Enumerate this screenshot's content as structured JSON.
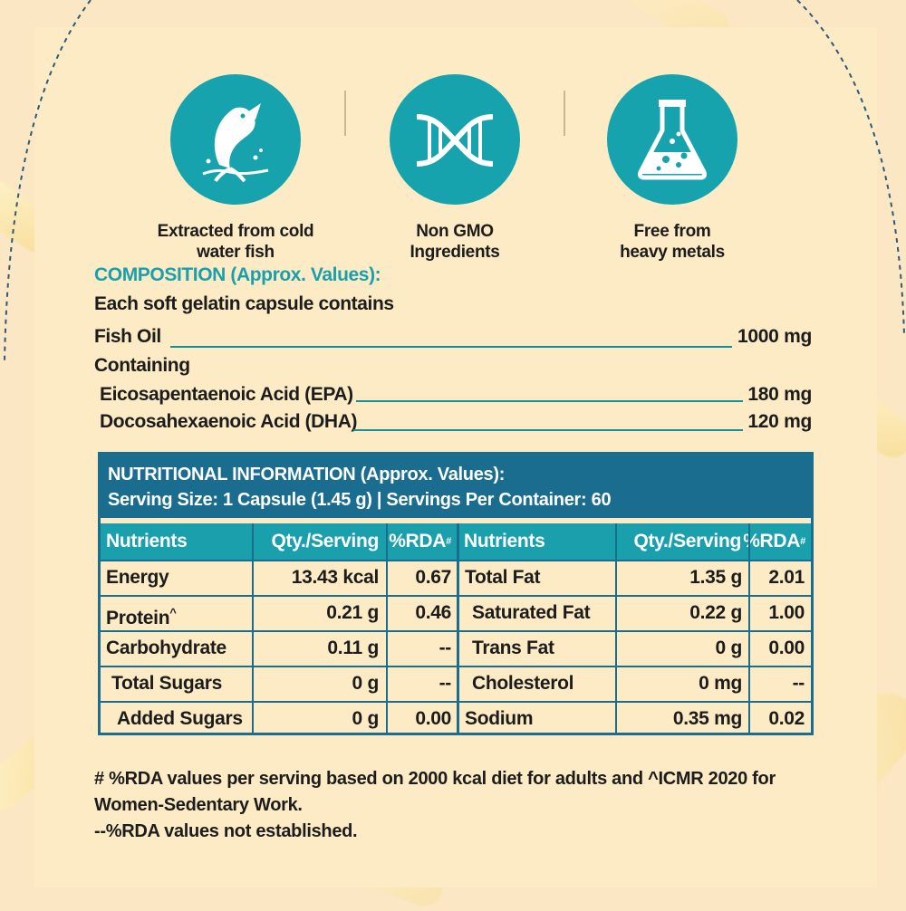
{
  "badges": [
    {
      "icon": "fish-icon",
      "label_line1": "Extracted from cold",
      "label_line2": "water fish"
    },
    {
      "icon": "dna-icon",
      "label_line1": "Non GMO",
      "label_line2": "Ingredients"
    },
    {
      "icon": "flask-icon",
      "label_line1": "Free from",
      "label_line2": "heavy metals"
    }
  ],
  "composition": {
    "title": "COMPOSITION (Approx. Values):",
    "intro": "Each soft gelatin capsule contains",
    "items": [
      {
        "name": "Fish Oil",
        "amount": "1000 mg"
      },
      {
        "name": "Containing",
        "amount": ""
      },
      {
        "name": "Eicosapentaenoic Acid (EPA)",
        "amount": "180 mg"
      },
      {
        "name": "Docosahexaenoic Acid (DHA)",
        "amount": "120 mg"
      }
    ]
  },
  "nutrition": {
    "title": "NUTRITIONAL INFORMATION (Approx. Values):",
    "serving": "Serving Size: 1 Capsule (1.45 g) | Servings Per Container: 60",
    "headers": [
      "Nutrients",
      "Qty./Serving",
      "%RDA",
      "#"
    ],
    "left_rows": [
      {
        "nutrient": "Energy",
        "qty": "13.43 kcal",
        "rda": "0.67"
      },
      {
        "nutrient": "Protein",
        "sup": "^",
        "qty": "0.21 g",
        "rda": "0.46"
      },
      {
        "nutrient": "Carbohydrate",
        "qty": "0.11 g",
        "rda": "--"
      },
      {
        "nutrient": "Total Sugars",
        "qty": "0 g",
        "rda": "--"
      },
      {
        "nutrient": "Added Sugars",
        "qty": "0 g",
        "rda": "0.00"
      }
    ],
    "right_rows": [
      {
        "nutrient": "Total Fat",
        "qty": "1.35 g",
        "rda": "2.01"
      },
      {
        "nutrient": "Saturated Fat",
        "qty": "0.22 g",
        "rda": "1.00"
      },
      {
        "nutrient": "Trans Fat",
        "qty": "0 g",
        "rda": "0.00"
      },
      {
        "nutrient": "Cholesterol",
        "qty": "0 mg",
        "rda": "--"
      },
      {
        "nutrient": "Sodium",
        "qty": "0.35 mg",
        "rda": "0.02"
      }
    ]
  },
  "footnotes": {
    "line1": "# %RDA values per serving based on 2000 kcal diet for adults and ^ICMR 2020 for",
    "line2": "Women-Sedentary Work.",
    "line3": "--%RDA values not established."
  },
  "colors": {
    "teal": "#16a3ad",
    "navy": "#1b6d8f",
    "background": "#fcebc5"
  }
}
